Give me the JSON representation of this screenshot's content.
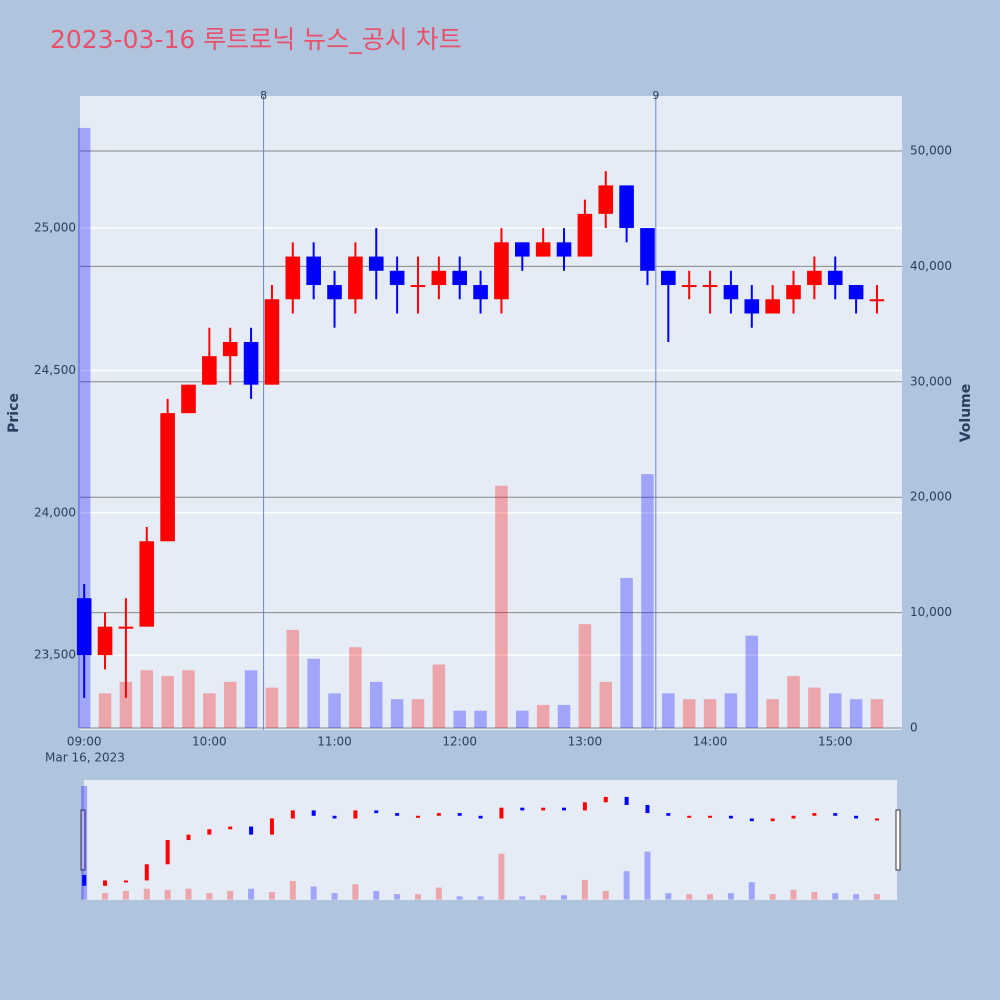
{
  "chart_data": {
    "type": "candlestick",
    "title": "2023-03-16 루트로닉 뉴스_공시 차트",
    "x_date_label": "Mar 16, 2023",
    "y_title": "Price",
    "y2_title": "Volume",
    "increasing_color": "#ff0000",
    "decreasing_color": "#0000ff",
    "x": [
      "09:00",
      "09:10",
      "09:20",
      "09:30",
      "09:40",
      "09:50",
      "10:00",
      "10:10",
      "10:20",
      "10:30",
      "10:40",
      "10:50",
      "11:00",
      "11:10",
      "11:20",
      "11:30",
      "11:40",
      "11:50",
      "12:00",
      "12:10",
      "12:20",
      "12:30",
      "12:40",
      "12:50",
      "13:00",
      "13:10",
      "13:20",
      "13:30",
      "13:40",
      "13:50",
      "14:00",
      "14:10",
      "14:20",
      "14:30",
      "14:40",
      "14:50",
      "15:00",
      "15:10",
      "15:20"
    ],
    "open": [
      23700,
      23500,
      23600,
      23600,
      23900,
      24350,
      24450,
      24550,
      24600,
      24450,
      24750,
      24900,
      24800,
      24750,
      24900,
      24850,
      24800,
      24800,
      24850,
      24800,
      24750,
      24950,
      24900,
      24950,
      24900,
      25050,
      25150,
      25000,
      24850,
      24800,
      24800,
      24800,
      24750,
      24700,
      24750,
      24800,
      24850,
      24800,
      24750
    ],
    "high": [
      23750,
      23650,
      23700,
      23950,
      24400,
      24450,
      24650,
      24650,
      24650,
      24800,
      24950,
      24950,
      24850,
      24950,
      25000,
      24900,
      24900,
      24900,
      24900,
      24850,
      25000,
      24950,
      25000,
      25000,
      25100,
      25200,
      25150,
      25000,
      24850,
      24850,
      24850,
      24850,
      24800,
      24800,
      24850,
      24900,
      24900,
      24800,
      24800
    ],
    "low": [
      23350,
      23450,
      23350,
      23600,
      23900,
      24350,
      24450,
      24450,
      24400,
      24450,
      24700,
      24750,
      24650,
      24700,
      24750,
      24700,
      24700,
      24750,
      24750,
      24700,
      24700,
      24850,
      24900,
      24850,
      24900,
      25000,
      24950,
      24800,
      24600,
      24750,
      24700,
      24700,
      24650,
      24700,
      24700,
      24750,
      24750,
      24700,
      24700
    ],
    "close": [
      23500,
      23600,
      23600,
      23900,
      24350,
      24450,
      24550,
      24600,
      24450,
      24750,
      24900,
      24800,
      24750,
      24900,
      24850,
      24800,
      24800,
      24850,
      24800,
      24750,
      24950,
      24900,
      24950,
      24900,
      25050,
      25150,
      25000,
      24850,
      24800,
      24800,
      24800,
      24750,
      24700,
      24750,
      24800,
      24850,
      24800,
      24750,
      24750
    ],
    "volume": [
      52000,
      3000,
      4000,
      5000,
      4500,
      5000,
      3000,
      4000,
      5000,
      3500,
      8500,
      6000,
      3000,
      7000,
      4000,
      2500,
      2500,
      5500,
      1500,
      1500,
      21000,
      1500,
      2000,
      2000,
      9000,
      4000,
      13000,
      22000,
      3000,
      2500,
      2500,
      3000,
      8000,
      2500,
      4500,
      3500,
      3000,
      2500,
      2500
    ],
    "xlim": [
      "08:58",
      "15:32"
    ],
    "xticks": [
      "09:00",
      "10:00",
      "11:00",
      "12:00",
      "13:00",
      "14:00",
      "15:00"
    ],
    "ylim": [
      23237,
      25464
    ],
    "yticks": [
      {
        "value": 23500,
        "label": "23,500"
      },
      {
        "value": 24000,
        "label": "24,000"
      },
      {
        "value": 24500,
        "label": "24,500"
      },
      {
        "value": 25000,
        "label": "25,000"
      }
    ],
    "y2lim": [
      -173,
      54766
    ],
    "y2ticks": [
      0,
      {
        "value": 10000,
        "label": "10,000"
      },
      {
        "value": 20000,
        "label": "20,000"
      },
      {
        "value": 30000,
        "label": "30,000"
      },
      {
        "value": 40000,
        "label": "40,000"
      },
      {
        "value": 50000,
        "label": "50,000"
      }
    ],
    "annotations": [
      {
        "x": "10:26",
        "text": "8"
      },
      {
        "x": "13:34",
        "text": "9"
      }
    ]
  }
}
